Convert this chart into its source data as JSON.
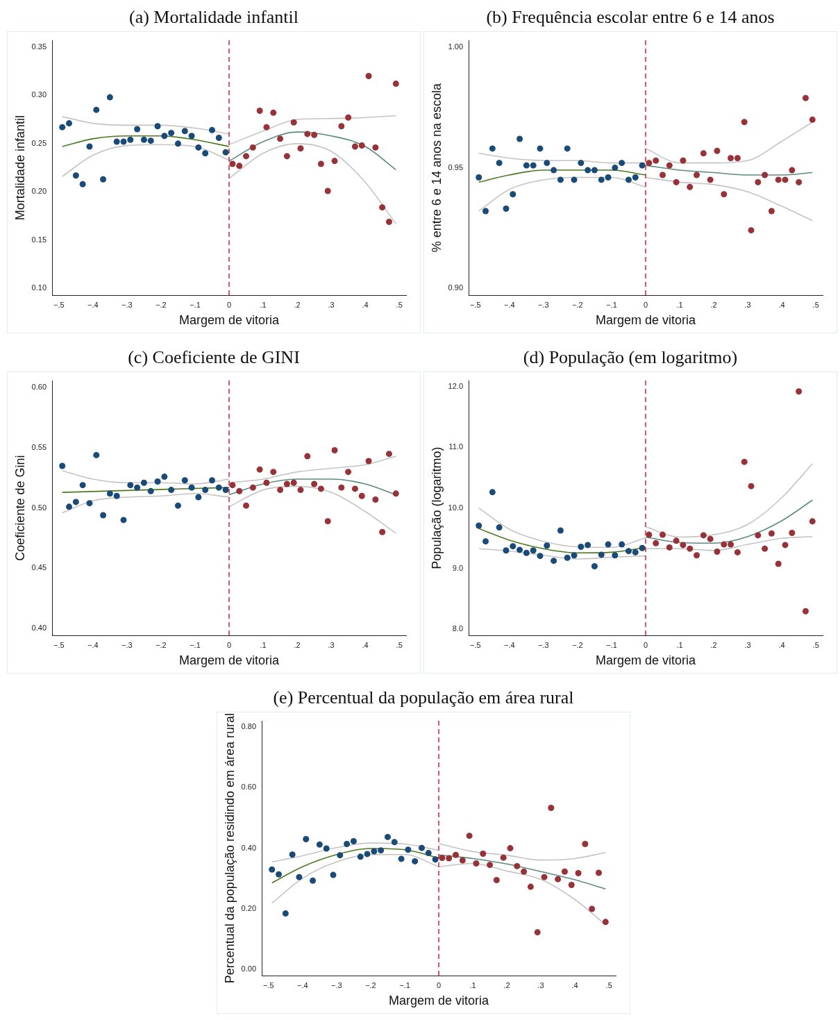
{
  "chart_data": [
    {
      "type": "scatter",
      "title": "(a) Mortalidade infantil",
      "xlabel": "Margem de vitoria",
      "ylabel": "Mortalidade infantil",
      "xlim": [
        -0.52,
        0.52
      ],
      "xticks": [
        {
          "value": -0.5,
          "label": "−.5"
        },
        {
          "value": -0.4,
          "label": "−.4"
        },
        {
          "value": -0.3,
          "label": "−.3"
        },
        {
          "value": -0.2,
          "label": "−.2"
        },
        {
          "value": -0.1,
          "label": "−.1"
        },
        {
          "value": 0,
          "label": "0"
        },
        {
          "value": 0.1,
          "label": ".1"
        },
        {
          "value": 0.2,
          "label": ".2"
        },
        {
          "value": 0.3,
          "label": ".3"
        },
        {
          "value": 0.4,
          "label": ".4"
        },
        {
          "value": 0.5,
          "label": ".5"
        }
      ],
      "ylim": [
        0.093,
        0.357
      ],
      "yticks": [
        {
          "value": 0.1,
          "label": "0.10"
        },
        {
          "value": 0.15,
          "label": "0.15"
        },
        {
          "value": 0.2,
          "label": "0.20"
        },
        {
          "value": 0.25,
          "label": "0.25"
        },
        {
          "value": 0.3,
          "label": "0.30"
        },
        {
          "value": 0.35,
          "label": "0.35"
        }
      ],
      "ref_lines": [
        {
          "axis": "x",
          "value": 0,
          "color": "#d4203c",
          "line_style": "dashed"
        }
      ],
      "series": [
        {
          "type": "line",
          "color": "#c4c4c4",
          "x": [
            -0.49,
            -0.4,
            -0.3,
            -0.2,
            -0.1,
            0
          ],
          "values": [
            0.278,
            0.271,
            0.269,
            0.269,
            0.266,
            0.26
          ]
        },
        {
          "type": "line",
          "color": "#c4c4c4",
          "x": [
            -0.49,
            -0.4,
            -0.3,
            -0.2,
            -0.1,
            0
          ],
          "values": [
            0.216,
            0.238,
            0.248,
            0.249,
            0.247,
            0.233
          ]
        },
        {
          "type": "line",
          "color": "#c4c4c4",
          "x": [
            0,
            0.1,
            0.2,
            0.3,
            0.4,
            0.49
          ],
          "values": [
            0.249,
            0.263,
            0.275,
            0.276,
            0.277,
            0.279
          ]
        },
        {
          "type": "line",
          "color": "#c4c4c4",
          "x": [
            0,
            0.1,
            0.2,
            0.3,
            0.4,
            0.49
          ],
          "values": [
            0.214,
            0.24,
            0.25,
            0.242,
            0.21,
            0.167
          ]
        },
        {
          "type": "line",
          "color": "#4a7a1e",
          "x": [
            -0.49,
            -0.4,
            -0.3,
            -0.2,
            -0.1,
            0
          ],
          "values": [
            0.247,
            0.255,
            0.258,
            0.258,
            0.254,
            0.247
          ]
        },
        {
          "type": "line",
          "color": "#5b8c7e",
          "x": [
            0,
            0.1,
            0.2,
            0.3,
            0.4,
            0.49
          ],
          "values": [
            0.232,
            0.252,
            0.262,
            0.258,
            0.247,
            0.223
          ]
        },
        {
          "marker": "circle",
          "color": "#1a4a78",
          "x": [
            -0.49,
            -0.47,
            -0.45,
            -0.43,
            -0.41,
            -0.39,
            -0.37,
            -0.35,
            -0.33,
            -0.31,
            -0.29,
            -0.27,
            -0.25,
            -0.23,
            -0.21,
            -0.19,
            -0.17,
            -0.15,
            -0.13,
            -0.11,
            -0.09,
            -0.07,
            -0.05,
            -0.03,
            -0.01
          ],
          "values": [
            0.267,
            0.271,
            0.217,
            0.208,
            0.247,
            0.285,
            0.213,
            0.298,
            0.252,
            0.252,
            0.254,
            0.265,
            0.254,
            0.253,
            0.268,
            0.258,
            0.261,
            0.25,
            0.263,
            0.258,
            0.246,
            0.24,
            0.264,
            0.256,
            0.241
          ]
        },
        {
          "marker": "circle",
          "color": "#963238",
          "x": [
            0.01,
            0.03,
            0.05,
            0.07,
            0.09,
            0.11,
            0.13,
            0.15,
            0.17,
            0.19,
            0.21,
            0.23,
            0.25,
            0.27,
            0.29,
            0.31,
            0.33,
            0.35,
            0.37,
            0.39,
            0.41,
            0.43,
            0.45,
            0.47,
            0.49
          ],
          "values": [
            0.229,
            0.227,
            0.237,
            0.246,
            0.284,
            0.267,
            0.282,
            0.255,
            0.237,
            0.272,
            0.245,
            0.26,
            0.259,
            0.229,
            0.201,
            0.232,
            0.268,
            0.277,
            0.247,
            0.248,
            0.32,
            0.246,
            0.184,
            0.169,
            0.312
          ]
        }
      ]
    },
    {
      "type": "scatter",
      "title": "(b) Frequência escolar entre 6 e 14 anos",
      "xlabel": "Margem de vitoria",
      "ylabel": "% entre 6 e 14 anos na escola",
      "xlim": [
        -0.52,
        0.52
      ],
      "xticks": [
        {
          "value": -0.5,
          "label": "−.5"
        },
        {
          "value": -0.4,
          "label": "−.4"
        },
        {
          "value": -0.3,
          "label": "−.3"
        },
        {
          "value": -0.2,
          "label": "−.2"
        },
        {
          "value": -0.1,
          "label": "−.1"
        },
        {
          "value": 0,
          "label": "0"
        },
        {
          "value": 0.1,
          "label": ".1"
        },
        {
          "value": 0.2,
          "label": ".2"
        },
        {
          "value": 0.3,
          "label": ".3"
        },
        {
          "value": 0.4,
          "label": ".4"
        },
        {
          "value": 0.5,
          "label": ".5"
        }
      ],
      "ylim": [
        0.897,
        1.003
      ],
      "yticks": [
        {
          "value": 0.9,
          "label": "0.90"
        },
        {
          "value": 0.95,
          "label": "0.95"
        },
        {
          "value": 1,
          "label": "1.00"
        }
      ],
      "ref_lines": [
        {
          "axis": "x",
          "value": 0,
          "color": "#d4203c",
          "line_style": "dashed"
        }
      ],
      "series": [
        {
          "type": "line",
          "color": "#c4c4c4",
          "x": [
            -0.49,
            -0.4,
            -0.3,
            -0.2,
            -0.1,
            0
          ],
          "values": [
            0.956,
            0.954,
            0.953,
            0.953,
            0.952,
            0.952
          ]
        },
        {
          "type": "line",
          "color": "#c4c4c4",
          "x": [
            -0.49,
            -0.4,
            -0.3,
            -0.2,
            -0.1,
            0
          ],
          "values": [
            0.932,
            0.941,
            0.945,
            0.946,
            0.946,
            0.942
          ]
        },
        {
          "type": "line",
          "color": "#c4c4c4",
          "x": [
            0,
            0.1,
            0.2,
            0.3,
            0.4,
            0.49
          ],
          "values": [
            0.958,
            0.952,
            0.952,
            0.953,
            0.961,
            0.969
          ]
        },
        {
          "type": "line",
          "color": "#c4c4c4",
          "x": [
            0,
            0.1,
            0.2,
            0.3,
            0.4,
            0.49
          ],
          "values": [
            0.946,
            0.944,
            0.943,
            0.94,
            0.934,
            0.928
          ]
        },
        {
          "type": "line",
          "color": "#4a7a1e",
          "x": [
            -0.49,
            -0.4,
            -0.3,
            -0.2,
            -0.1,
            0
          ],
          "values": [
            0.944,
            0.947,
            0.949,
            0.949,
            0.949,
            0.947
          ]
        },
        {
          "type": "line",
          "color": "#5b8c7e",
          "x": [
            0,
            0.1,
            0.2,
            0.3,
            0.4,
            0.49
          ],
          "values": [
            0.951,
            0.949,
            0.948,
            0.947,
            0.947,
            0.948
          ]
        },
        {
          "marker": "circle",
          "color": "#1a4a78",
          "x": [
            -0.49,
            -0.47,
            -0.45,
            -0.43,
            -0.41,
            -0.39,
            -0.37,
            -0.35,
            -0.33,
            -0.31,
            -0.29,
            -0.27,
            -0.25,
            -0.23,
            -0.21,
            -0.19,
            -0.17,
            -0.15,
            -0.13,
            -0.11,
            -0.09,
            -0.07,
            -0.05,
            -0.03,
            -0.01
          ],
          "values": [
            0.946,
            0.932,
            0.958,
            0.952,
            0.933,
            0.939,
            0.962,
            0.951,
            0.951,
            0.958,
            0.952,
            0.949,
            0.945,
            0.958,
            0.945,
            0.952,
            0.949,
            0.949,
            0.945,
            0.946,
            0.95,
            0.952,
            0.945,
            0.946,
            0.951
          ]
        },
        {
          "marker": "circle",
          "color": "#963238",
          "x": [
            0.01,
            0.03,
            0.05,
            0.07,
            0.09,
            0.11,
            0.13,
            0.15,
            0.17,
            0.19,
            0.21,
            0.23,
            0.25,
            0.27,
            0.29,
            0.31,
            0.33,
            0.35,
            0.37,
            0.39,
            0.41,
            0.43,
            0.45,
            0.47,
            0.49
          ],
          "values": [
            0.952,
            0.953,
            0.947,
            0.951,
            0.944,
            0.953,
            0.942,
            0.947,
            0.956,
            0.945,
            0.957,
            0.939,
            0.954,
            0.954,
            0.969,
            0.924,
            0.944,
            0.947,
            0.932,
            0.945,
            0.945,
            0.949,
            0.944,
            0.979,
            0.97
          ]
        }
      ]
    },
    {
      "type": "scatter",
      "title": "(c) Coeficiente de GINI",
      "xlabel": "Margem de vitoria",
      "ylabel": "Coeficiente de Gini",
      "xlim": [
        -0.52,
        0.52
      ],
      "xticks": [
        {
          "value": -0.5,
          "label": "−.5"
        },
        {
          "value": -0.4,
          "label": "−.4"
        },
        {
          "value": -0.3,
          "label": "−.3"
        },
        {
          "value": -0.2,
          "label": "−.2"
        },
        {
          "value": -0.1,
          "label": "−.1"
        },
        {
          "value": 0,
          "label": "0"
        },
        {
          "value": 0.1,
          "label": ".1"
        },
        {
          "value": 0.2,
          "label": ".2"
        },
        {
          "value": 0.3,
          "label": ".3"
        },
        {
          "value": 0.4,
          "label": ".4"
        },
        {
          "value": 0.5,
          "label": ".5"
        }
      ],
      "ylim": [
        0.394,
        0.606
      ],
      "yticks": [
        {
          "value": 0.4,
          "label": "0.40"
        },
        {
          "value": 0.45,
          "label": "0.45"
        },
        {
          "value": 0.5,
          "label": "0.50"
        },
        {
          "value": 0.55,
          "label": "0.55"
        },
        {
          "value": 0.6,
          "label": "0.60"
        }
      ],
      "ref_lines": [
        {
          "axis": "x",
          "value": 0,
          "color": "#d4203c",
          "line_style": "dashed"
        }
      ],
      "series": [
        {
          "type": "line",
          "color": "#c4c4c4",
          "x": [
            -0.49,
            -0.4,
            -0.3,
            -0.2,
            -0.1,
            0
          ],
          "values": [
            0.531,
            0.524,
            0.521,
            0.521,
            0.52,
            0.524
          ]
        },
        {
          "type": "line",
          "color": "#c4c4c4",
          "x": [
            -0.49,
            -0.4,
            -0.3,
            -0.2,
            -0.1,
            0
          ],
          "values": [
            0.496,
            0.506,
            0.509,
            0.51,
            0.512,
            0.509
          ]
        },
        {
          "type": "line",
          "color": "#c4c4c4",
          "x": [
            0,
            0.1,
            0.2,
            0.3,
            0.4,
            0.49
          ],
          "values": [
            0.521,
            0.524,
            0.53,
            0.533,
            0.536,
            0.543
          ]
        },
        {
          "type": "line",
          "color": "#c4c4c4",
          "x": [
            0,
            0.1,
            0.2,
            0.3,
            0.4,
            0.49
          ],
          "values": [
            0.501,
            0.515,
            0.518,
            0.513,
            0.497,
            0.479
          ]
        },
        {
          "type": "line",
          "color": "#4a7a1e",
          "x": [
            -0.49,
            -0.25,
            0
          ],
          "values": [
            0.513,
            0.515,
            0.517
          ]
        },
        {
          "type": "line",
          "color": "#5b8c7e",
          "x": [
            0,
            0.1,
            0.2,
            0.3,
            0.4,
            0.49
          ],
          "values": [
            0.511,
            0.52,
            0.524,
            0.524,
            0.52,
            0.511
          ]
        },
        {
          "marker": "circle",
          "color": "#1a4a78",
          "x": [
            -0.49,
            -0.47,
            -0.45,
            -0.43,
            -0.41,
            -0.39,
            -0.37,
            -0.35,
            -0.33,
            -0.31,
            -0.29,
            -0.27,
            -0.25,
            -0.23,
            -0.21,
            -0.19,
            -0.17,
            -0.15,
            -0.13,
            -0.11,
            -0.09,
            -0.07,
            -0.05,
            -0.03,
            -0.01
          ],
          "values": [
            0.535,
            0.501,
            0.505,
            0.519,
            0.504,
            0.544,
            0.494,
            0.512,
            0.51,
            0.49,
            0.519,
            0.517,
            0.521,
            0.514,
            0.522,
            0.526,
            0.515,
            0.502,
            0.523,
            0.517,
            0.509,
            0.515,
            0.523,
            0.517,
            0.515
          ]
        },
        {
          "marker": "circle",
          "color": "#963238",
          "x": [
            0.01,
            0.03,
            0.05,
            0.07,
            0.09,
            0.11,
            0.13,
            0.15,
            0.17,
            0.19,
            0.21,
            0.23,
            0.25,
            0.27,
            0.29,
            0.31,
            0.33,
            0.35,
            0.37,
            0.39,
            0.41,
            0.43,
            0.45,
            0.47,
            0.49
          ],
          "values": [
            0.519,
            0.514,
            0.502,
            0.517,
            0.532,
            0.521,
            0.53,
            0.515,
            0.52,
            0.521,
            0.515,
            0.543,
            0.52,
            0.516,
            0.489,
            0.548,
            0.517,
            0.53,
            0.516,
            0.51,
            0.539,
            0.507,
            0.48,
            0.545,
            0.512
          ]
        }
      ]
    },
    {
      "type": "scatter",
      "title": "(d) População (em logaritmo)",
      "xlabel": "Margem de vitoria",
      "ylabel": "População (logaritmo)",
      "xlim": [
        -0.52,
        0.52
      ],
      "xticks": [
        {
          "value": -0.5,
          "label": "−.5"
        },
        {
          "value": -0.4,
          "label": "−.4"
        },
        {
          "value": -0.3,
          "label": "−.3"
        },
        {
          "value": -0.2,
          "label": "−.2"
        },
        {
          "value": -0.1,
          "label": "−.1"
        },
        {
          "value": 0,
          "label": "0"
        },
        {
          "value": 0.1,
          "label": ".1"
        },
        {
          "value": 0.2,
          "label": ".2"
        },
        {
          "value": 0.3,
          "label": ".3"
        },
        {
          "value": 0.4,
          "label": ".4"
        },
        {
          "value": 0.5,
          "label": ".5"
        }
      ],
      "ylim": [
        7.9,
        12.1
      ],
      "yticks": [
        {
          "value": 8,
          "label": "8.0"
        },
        {
          "value": 9,
          "label": "9.0"
        },
        {
          "value": 10,
          "label": "10.0"
        },
        {
          "value": 11,
          "label": "11.0"
        },
        {
          "value": 12,
          "label": "12.0"
        }
      ],
      "ref_lines": [
        {
          "axis": "x",
          "value": 0,
          "color": "#d4203c",
          "line_style": "dashed"
        }
      ],
      "series": [
        {
          "type": "line",
          "color": "#c4c4c4",
          "x": [
            -0.49,
            -0.4,
            -0.3,
            -0.2,
            -0.1,
            0
          ],
          "values": [
            10.0,
            9.65,
            9.45,
            9.36,
            9.35,
            9.51
          ]
        },
        {
          "type": "line",
          "color": "#c4c4c4",
          "x": [
            -0.49,
            -0.4,
            -0.3,
            -0.2,
            -0.1,
            0
          ],
          "values": [
            9.33,
            9.29,
            9.22,
            9.16,
            9.19,
            9.21
          ]
        },
        {
          "type": "line",
          "color": "#c4c4c4",
          "x": [
            0,
            0.1,
            0.2,
            0.3,
            0.4,
            0.49
          ],
          "values": [
            9.69,
            9.52,
            9.56,
            9.73,
            10.17,
            10.73
          ]
        },
        {
          "type": "line",
          "color": "#c4c4c4",
          "x": [
            0,
            0.1,
            0.2,
            0.3,
            0.4,
            0.49
          ],
          "values": [
            9.33,
            9.33,
            9.3,
            9.4,
            9.5,
            9.53
          ]
        },
        {
          "type": "line",
          "color": "#4a7a1e",
          "x": [
            -0.49,
            -0.4,
            -0.3,
            -0.2,
            -0.1,
            0
          ],
          "values": [
            9.66,
            9.47,
            9.33,
            9.26,
            9.27,
            9.35
          ]
        },
        {
          "type": "line",
          "color": "#5b8c7e",
          "x": [
            0,
            0.1,
            0.2,
            0.3,
            0.4,
            0.49
          ],
          "values": [
            9.52,
            9.43,
            9.42,
            9.53,
            9.79,
            10.13
          ]
        },
        {
          "marker": "circle",
          "color": "#1a4a78",
          "x": [
            -0.49,
            -0.47,
            -0.45,
            -0.43,
            -0.41,
            -0.39,
            -0.37,
            -0.35,
            -0.33,
            -0.31,
            -0.29,
            -0.27,
            -0.25,
            -0.23,
            -0.21,
            -0.19,
            -0.17,
            -0.15,
            -0.13,
            -0.11,
            -0.09,
            -0.07,
            -0.05,
            -0.03,
            -0.01
          ],
          "values": [
            9.71,
            9.45,
            10.26,
            9.68,
            9.3,
            9.37,
            9.31,
            9.26,
            9.3,
            9.21,
            9.38,
            9.13,
            9.63,
            9.18,
            9.22,
            9.36,
            9.39,
            9.04,
            9.23,
            9.4,
            9.22,
            9.4,
            9.29,
            9.27,
            9.34
          ]
        },
        {
          "marker": "circle",
          "color": "#963238",
          "x": [
            0.01,
            0.03,
            0.05,
            0.07,
            0.09,
            0.11,
            0.13,
            0.15,
            0.17,
            0.19,
            0.21,
            0.23,
            0.25,
            0.27,
            0.29,
            0.31,
            0.33,
            0.35,
            0.37,
            0.39,
            0.41,
            0.43,
            0.45,
            0.47,
            0.49
          ],
          "values": [
            9.56,
            9.42,
            9.56,
            9.35,
            9.46,
            9.39,
            9.33,
            9.22,
            9.55,
            9.49,
            9.28,
            9.4,
            9.4,
            9.27,
            10.76,
            10.36,
            9.55,
            9.33,
            9.58,
            9.08,
            9.39,
            9.59,
            11.92,
            8.3,
            9.78
          ]
        }
      ]
    },
    {
      "type": "scatter",
      "title": "(e) Percentual da população em área rural",
      "xlabel": "Margem de vitoria",
      "ylabel": "Percentual da população residindo em área rural",
      "xlim": [
        -0.52,
        0.52
      ],
      "xticks": [
        {
          "value": -0.5,
          "label": "−.5"
        },
        {
          "value": -0.4,
          "label": "−.4"
        },
        {
          "value": -0.3,
          "label": "−.3"
        },
        {
          "value": -0.2,
          "label": "−.2"
        },
        {
          "value": -0.1,
          "label": "−.1"
        },
        {
          "value": 0,
          "label": "0"
        },
        {
          "value": 0.1,
          "label": ".1"
        },
        {
          "value": 0.2,
          "label": ".2"
        },
        {
          "value": 0.3,
          "label": ".3"
        },
        {
          "value": 0.4,
          "label": ".4"
        },
        {
          "value": 0.5,
          "label": ".5"
        }
      ],
      "ylim": [
        -0.02,
        0.82
      ],
      "yticks": [
        {
          "value": 0,
          "label": "0.00"
        },
        {
          "value": 0.2,
          "label": "0.20"
        },
        {
          "value": 0.4,
          "label": "0.40"
        },
        {
          "value": 0.6,
          "label": "0.60"
        },
        {
          "value": 0.8,
          "label": "0.80"
        }
      ],
      "ref_lines": [
        {
          "axis": "x",
          "value": 0,
          "color": "#d4203c",
          "line_style": "dashed"
        }
      ],
      "series": [
        {
          "type": "line",
          "color": "#c4c4c4",
          "x": [
            -0.49,
            -0.4,
            -0.3,
            -0.2,
            -0.1,
            0
          ],
          "values": [
            0.355,
            0.375,
            0.402,
            0.417,
            0.414,
            0.393
          ]
        },
        {
          "type": "line",
          "color": "#c4c4c4",
          "x": [
            -0.49,
            -0.4,
            -0.3,
            -0.2,
            -0.1,
            0
          ],
          "values": [
            0.219,
            0.301,
            0.355,
            0.379,
            0.379,
            0.339
          ]
        },
        {
          "type": "line",
          "color": "#c4c4c4",
          "x": [
            0,
            0.1,
            0.2,
            0.3,
            0.4,
            0.49
          ],
          "values": [
            0.415,
            0.389,
            0.377,
            0.361,
            0.366,
            0.386
          ]
        },
        {
          "type": "line",
          "color": "#c4c4c4",
          "x": [
            0,
            0.1,
            0.2,
            0.3,
            0.4,
            0.49
          ],
          "values": [
            0.339,
            0.35,
            0.325,
            0.297,
            0.231,
            0.148
          ]
        },
        {
          "type": "line",
          "color": "#4a7a1e",
          "x": [
            -0.49,
            -0.4,
            -0.3,
            -0.2,
            -0.1,
            0
          ],
          "values": [
            0.286,
            0.339,
            0.379,
            0.399,
            0.395,
            0.368
          ]
        },
        {
          "type": "line",
          "color": "#5b8c7e",
          "x": [
            0,
            0.1,
            0.2,
            0.3,
            0.4,
            0.49
          ],
          "values": [
            0.378,
            0.366,
            0.348,
            0.323,
            0.296,
            0.266
          ]
        },
        {
          "marker": "circle",
          "color": "#1a4a78",
          "x": [
            -0.49,
            -0.47,
            -0.45,
            -0.43,
            -0.41,
            -0.39,
            -0.37,
            -0.35,
            -0.33,
            -0.31,
            -0.29,
            -0.27,
            -0.25,
            -0.23,
            -0.21,
            -0.19,
            -0.17,
            -0.15,
            -0.13,
            -0.11,
            -0.09,
            -0.07,
            -0.05,
            -0.03,
            -0.01
          ],
          "values": [
            0.33,
            0.314,
            0.185,
            0.379,
            0.305,
            0.43,
            0.293,
            0.412,
            0.399,
            0.312,
            0.377,
            0.414,
            0.423,
            0.372,
            0.381,
            0.39,
            0.393,
            0.437,
            0.42,
            0.365,
            0.395,
            0.357,
            0.401,
            0.384,
            0.363
          ]
        },
        {
          "marker": "circle",
          "color": "#963238",
          "x": [
            0.01,
            0.03,
            0.05,
            0.07,
            0.09,
            0.11,
            0.13,
            0.15,
            0.17,
            0.19,
            0.21,
            0.23,
            0.25,
            0.27,
            0.29,
            0.31,
            0.33,
            0.35,
            0.37,
            0.39,
            0.41,
            0.43,
            0.45,
            0.47,
            0.49
          ],
          "values": [
            0.368,
            0.367,
            0.378,
            0.36,
            0.441,
            0.35,
            0.382,
            0.345,
            0.295,
            0.369,
            0.4,
            0.341,
            0.323,
            0.273,
            0.123,
            0.305,
            0.533,
            0.298,
            0.323,
            0.279,
            0.318,
            0.414,
            0.2,
            0.319,
            0.157
          ]
        }
      ]
    }
  ]
}
